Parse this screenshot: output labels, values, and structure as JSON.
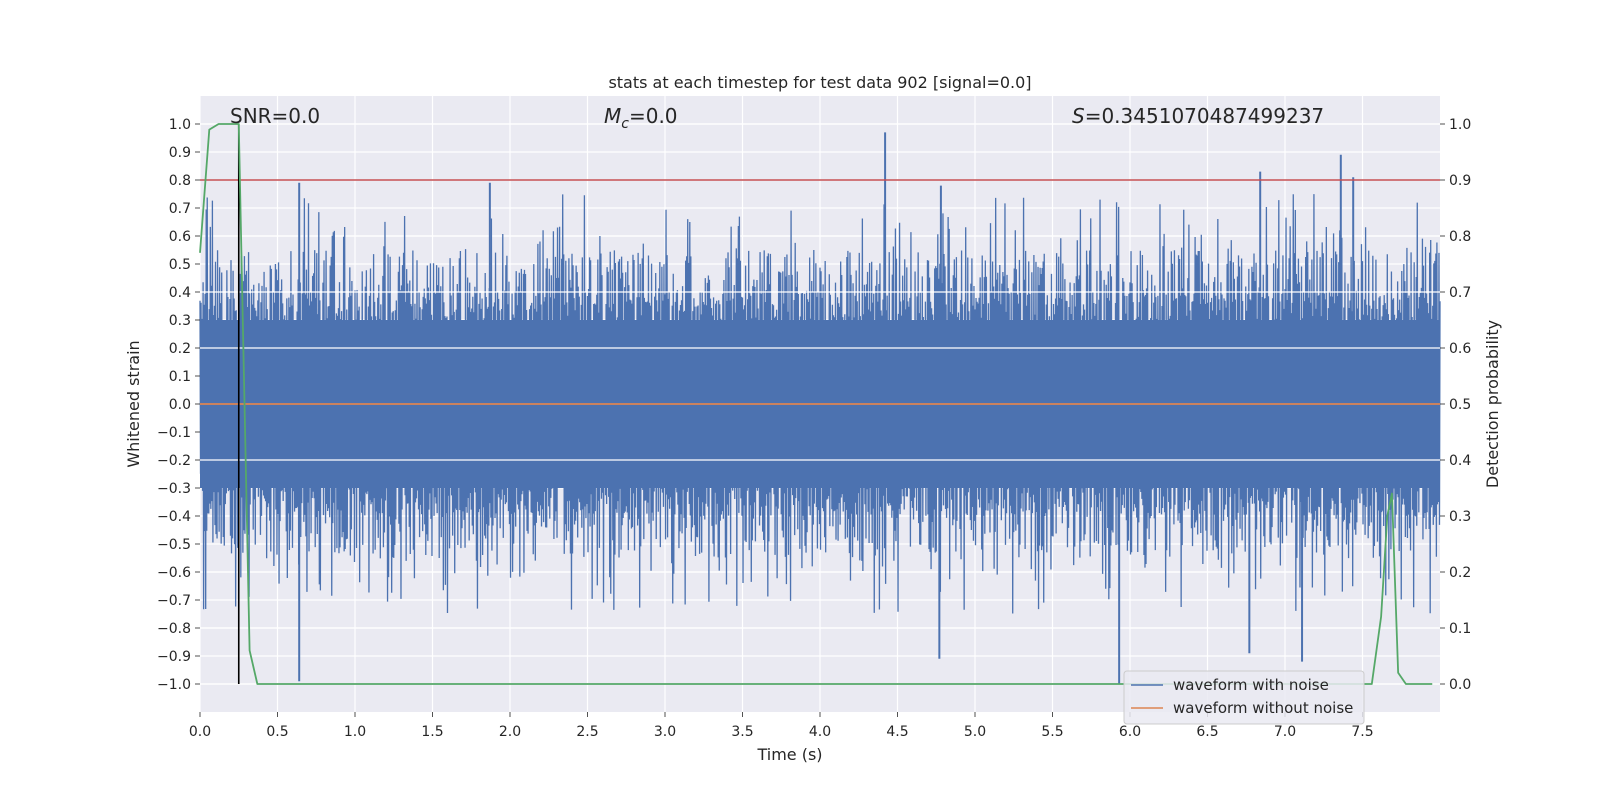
{
  "chart_data": {
    "type": "line",
    "title": "stats at each timestep for test data 902 [signal=0.0]",
    "xlabel": "Time (s)",
    "ylabel": "Whitened strain",
    "y2label": "Detection probability",
    "xlim": [
      0.0,
      8.0
    ],
    "ylim": [
      -1.1,
      1.1
    ],
    "y2lim": [
      -0.05,
      1.05
    ],
    "grid": true,
    "x_ticks": [
      "0.0",
      "0.5",
      "1.0",
      "1.5",
      "2.0",
      "2.5",
      "3.0",
      "3.5",
      "4.0",
      "4.5",
      "5.0",
      "5.5",
      "6.0",
      "6.5",
      "7.0",
      "7.5"
    ],
    "y_ticks": [
      "1.0",
      "0.9",
      "0.8",
      "0.7",
      "0.6",
      "0.5",
      "0.4",
      "0.3",
      "0.2",
      "0.1",
      "0.0",
      "−0.1",
      "−0.2",
      "−0.3",
      "−0.4",
      "−0.5",
      "−0.6",
      "−0.7",
      "−0.8",
      "−0.9",
      "−1.0"
    ],
    "y2_ticks": [
      "1.0",
      "0.9",
      "0.8",
      "0.7",
      "0.6",
      "0.5",
      "0.4",
      "0.3",
      "0.2",
      "0.1",
      "0.0"
    ],
    "annotations": {
      "snr": "SNR=0.0",
      "mc_symbol": "M",
      "mc_subscript": "c",
      "mc_value": "=0.0",
      "s_symbol": "S",
      "s_value": "=0.3451070487499237"
    },
    "legend": {
      "placement": "lower-right",
      "entries": [
        "waveform with noise",
        "waveform without noise"
      ]
    },
    "series": [
      {
        "name": "waveform with noise",
        "color": "#4c72b0",
        "axis": "left",
        "description": "whitened noise, roughly ±0.4 with peaks",
        "peaks": [
          {
            "x": 0.64,
            "y": 0.79
          },
          {
            "x": 1.87,
            "y": 0.79
          },
          {
            "x": 4.42,
            "y": 0.97
          },
          {
            "x": 4.78,
            "y": 0.78
          },
          {
            "x": 6.84,
            "y": 0.83
          },
          {
            "x": 7.36,
            "y": 0.89
          },
          {
            "x": 7.44,
            "y": 0.81
          },
          {
            "x": 0.64,
            "y": -0.99
          },
          {
            "x": 5.93,
            "y": -1.0
          },
          {
            "x": 6.77,
            "y": -0.89
          },
          {
            "x": 7.11,
            "y": -0.92
          },
          {
            "x": 4.77,
            "y": -0.91
          }
        ]
      },
      {
        "name": "waveform without noise",
        "color": "#dd8452",
        "axis": "left",
        "x": [
          0.0,
          8.0
        ],
        "y": [
          0.0,
          0.0
        ]
      },
      {
        "name": "detection probability",
        "color": "#55a868",
        "axis": "right",
        "x": [
          0.0,
          0.06,
          0.12,
          0.25,
          0.32,
          0.37,
          7.56,
          7.62,
          7.66,
          7.69,
          7.73,
          7.78,
          7.95
        ],
        "y": [
          0.77,
          0.99,
          1.0,
          1.0,
          0.06,
          0.0,
          0.0,
          0.12,
          0.3,
          0.34,
          0.02,
          0.0,
          0.0
        ]
      }
    ],
    "reference_lines": [
      {
        "orientation": "horizontal",
        "axis": "right",
        "value": 0.9,
        "color": "#c44e52"
      },
      {
        "orientation": "vertical",
        "value": 0.25,
        "color": "#000000",
        "y_from": -1.0,
        "y_to": 1.0
      }
    ]
  }
}
